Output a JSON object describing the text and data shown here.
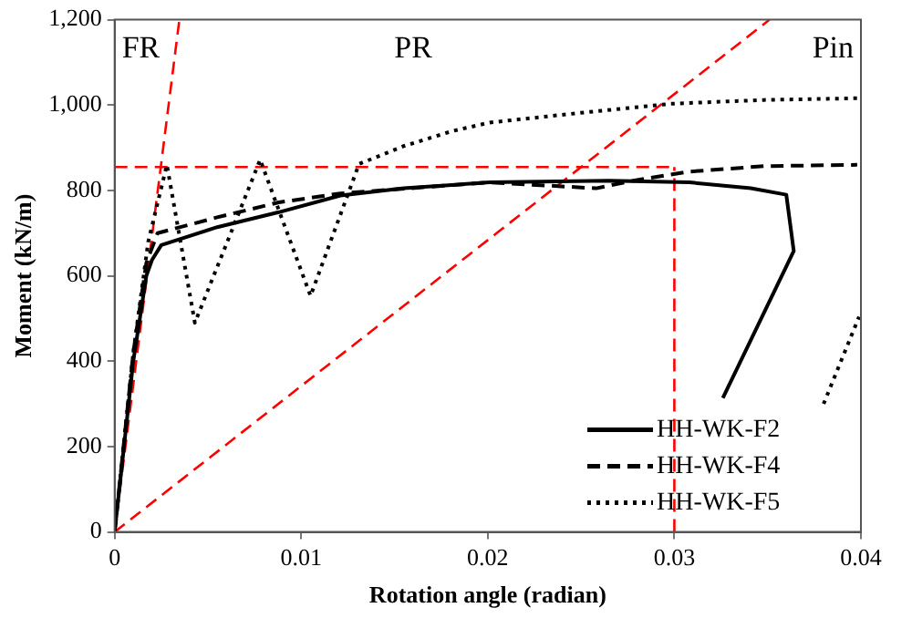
{
  "chart_data": {
    "type": "line",
    "xlabel": "Rotation angle (radian)",
    "ylabel": "Moment (kN/m)",
    "xlim": [
      0,
      0.04
    ],
    "xticks": [
      0,
      0.01,
      0.02,
      0.03,
      0.04
    ],
    "ylim": [
      0,
      1200
    ],
    "yticks": [
      0,
      200,
      400,
      600,
      800,
      {
        "value": 1000,
        "label": "1,000"
      },
      {
        "value": 1200,
        "label": "1,200"
      }
    ],
    "grid": false,
    "legend": "bottom right",
    "marker": "none",
    "series": [
      {
        "name": "HH-WK-F2",
        "color": "#000000",
        "line_style": "solid",
        "x": [
          0,
          0.0005,
          0.001,
          0.0017,
          0.002,
          0.0025,
          0.0055,
          0.0088,
          0.0121,
          0.0155,
          0.0201,
          0.0265,
          0.0308,
          0.0341,
          0.036,
          0.0364,
          0.0326
        ],
        "values": [
          0,
          200,
          400,
          600,
          637,
          672,
          714,
          749,
          788,
          805,
          819,
          823,
          819,
          805,
          790,
          658,
          314
        ]
      },
      {
        "name": "HH-WK-F4",
        "color": "#000000",
        "line_style": "dashed",
        "x": [
          0,
          0.0005,
          0.001,
          0.0017,
          0.0023,
          0.0055,
          0.0088,
          0.0121,
          0.0201,
          0.0258,
          0.0278,
          0.0308,
          0.0348,
          0.0398
        ],
        "values": [
          0,
          210,
          420,
          630,
          700,
          737,
          772,
          793,
          819,
          805,
          823,
          844,
          857,
          860
        ]
      },
      {
        "name": "HH-WK-F5",
        "color": "#000000",
        "line_style": "dotted",
        "x": [
          0,
          0.001,
          0.0018,
          0.0028,
          0.0043,
          0.0078,
          0.0105,
          0.0131,
          0.0155,
          0.0181,
          0.0201,
          0.0248,
          0.0298,
          0.0348,
          0.0398,
          0.039,
          0.038,
          0.0399
        ],
        "values": [
          0,
          420,
          680,
          860,
          490,
          872,
          553,
          862,
          904,
          939,
          959,
          981,
          1003,
          1012,
          1016,
          null,
          300,
          504
        ]
      },
      {
        "color": "#ff0000",
        "line_style": "dashed",
        "x": [
          0,
          0.00347
        ],
        "values": [
          0,
          1200
        ]
      },
      {
        "color": "#ff0000",
        "line_style": "dashed",
        "x": [
          0,
          0.0351
        ],
        "values": [
          0,
          1200
        ]
      },
      {
        "color": "#ff0000",
        "line_style": "dashed",
        "x": [
          0,
          0.03
        ],
        "values": [
          855,
          855
        ]
      },
      {
        "color": "#ff0000",
        "line_style": "dashed",
        "x": [
          0.03,
          0.03
        ],
        "values": [
          0,
          855
        ]
      }
    ],
    "annotations": [
      "FR",
      "PR",
      "Pin"
    ]
  }
}
